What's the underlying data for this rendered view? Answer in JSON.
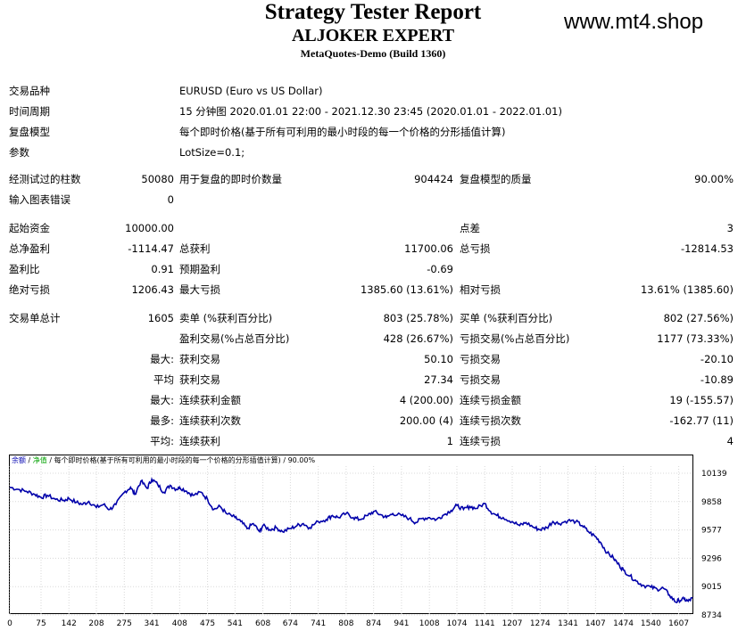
{
  "header": {
    "title": "Strategy Tester Report",
    "subtitle": "ALJOKER EXPERT",
    "build": "MetaQuotes-Demo (Build 1360)",
    "watermark": "www.mt4.shop"
  },
  "info": {
    "symbol_label": "交易品种",
    "symbol_value": "EURUSD (Euro vs US Dollar)",
    "period_label": "时间周期",
    "period_value": "15 分钟图 2020.01.01 22:00 - 2021.12.30 23:45 (2020.01.01 - 2022.01.01)",
    "model_label": "复盘模型",
    "model_value": "每个即时价格(基于所有可利用的最小时段的每一个价格的分形插值计算)",
    "params_label": "参数",
    "params_value": "LotSize=0.1;"
  },
  "test": {
    "bars_label": "经测试过的柱数",
    "bars_value": "50080",
    "ticks_label": "用于复盘的即时价数量",
    "ticks_value": "904424",
    "quality_label": "复盘模型的质量",
    "quality_value": "90.00%",
    "errors_label": "输入图表错误",
    "errors_value": "0"
  },
  "results": {
    "deposit_label": "起始资金",
    "deposit_value": "10000.00",
    "spread_label": "点差",
    "spread_value": "3",
    "net_label": "总净盈利",
    "net_value": "-1114.47",
    "gross_profit_label": "总获利",
    "gross_profit_value": "11700.06",
    "gross_loss_label": "总亏损",
    "gross_loss_value": "-12814.53",
    "pf_label": "盈利比",
    "pf_value": "0.91",
    "expected_label": "预期盈利",
    "expected_value": "-0.69",
    "abs_dd_label": "绝对亏损",
    "abs_dd_value": "1206.43",
    "max_dd_label": "最大亏损",
    "max_dd_value": "1385.60 (13.61%)",
    "rel_dd_label": "相对亏损",
    "rel_dd_value": "13.61% (1385.60)"
  },
  "trades": {
    "total_label": "交易单总计",
    "total_value": "1605",
    "short_label": "卖单 (%获利百分比)",
    "short_value": "803 (25.78%)",
    "long_label": "买单 (%获利百分比)",
    "long_value": "802 (27.56%)",
    "profit_trades_label": "盈利交易(%占总百分比)",
    "profit_trades_value": "428 (26.67%)",
    "loss_trades_label": "亏损交易(%占总百分比)",
    "loss_trades_value": "1177 (73.33%)",
    "max_prefix": "最大:",
    "largest_profit_label": "获利交易",
    "largest_profit_value": "50.10",
    "largest_loss_label": "亏损交易",
    "largest_loss_value": "-20.10",
    "avg_prefix": "平均",
    "avg_profit_label": "获利交易",
    "avg_profit_value": "27.34",
    "avg_loss_label": "亏损交易",
    "avg_loss_value": "-10.89",
    "max2_prefix": "最大:",
    "cons_wins_amount_label": "连续获利金额",
    "cons_wins_amount_value": "4 (200.00)",
    "cons_losses_amount_label": "连续亏损金额",
    "cons_losses_amount_value": "19 (-155.57)",
    "most_prefix": "最多:",
    "cons_profit_count_label": "连续获利次数",
    "cons_profit_count_value": "200.00 (4)",
    "cons_loss_count_label": "连续亏损次数",
    "cons_loss_count_value": "-162.77 (11)",
    "avg2_prefix": "平均:",
    "avg_cons_wins_label": "连续获利",
    "avg_cons_wins_value": "1",
    "avg_cons_losses_label": "连续亏损",
    "avg_cons_losses_value": "4"
  },
  "chart_data": {
    "type": "line",
    "legend_balance": "余额",
    "legend_sep1": " / ",
    "legend_equity": "净值",
    "legend_rest": " / 每个即时价格(基于所有可利用的最小时段的每一个价格的分形插值计算) / 90.00%",
    "balance_color": "#0000b0",
    "equity_color": "#00a000",
    "line_color": "#0000aa",
    "x_ticks": [
      "0",
      "75",
      "142",
      "208",
      "275",
      "341",
      "408",
      "475",
      "541",
      "608",
      "674",
      "741",
      "808",
      "874",
      "941",
      "1008",
      "1074",
      "1141",
      "1207",
      "1274",
      "1341",
      "1407",
      "1474",
      "1540",
      "1607"
    ],
    "y_ticks": [
      "10139",
      "9858",
      "9577",
      "9296",
      "9015",
      "8734"
    ],
    "ylim": [
      8734,
      10139
    ],
    "xlim": [
      0,
      1640
    ],
    "series": [
      {
        "values": [
          [
            0,
            10000
          ],
          [
            20,
            9980
          ],
          [
            40,
            9960
          ],
          [
            60,
            9930
          ],
          [
            75,
            9900
          ],
          [
            90,
            9920
          ],
          [
            110,
            9880
          ],
          [
            130,
            9870
          ],
          [
            142,
            9890
          ],
          [
            160,
            9850
          ],
          [
            175,
            9830
          ],
          [
            190,
            9860
          ],
          [
            208,
            9800
          ],
          [
            225,
            9830
          ],
          [
            240,
            9780
          ],
          [
            255,
            9830
          ],
          [
            275,
            9950
          ],
          [
            290,
            10000
          ],
          [
            300,
            9930
          ],
          [
            315,
            10060
          ],
          [
            330,
            9990
          ],
          [
            341,
            10080
          ],
          [
            355,
            10030
          ],
          [
            370,
            9950
          ],
          [
            385,
            10020
          ],
          [
            400,
            9980
          ],
          [
            408,
            10000
          ],
          [
            425,
            9960
          ],
          [
            440,
            9920
          ],
          [
            460,
            9950
          ],
          [
            475,
            9880
          ],
          [
            490,
            9780
          ],
          [
            505,
            9810
          ],
          [
            520,
            9740
          ],
          [
            541,
            9700
          ],
          [
            555,
            9660
          ],
          [
            570,
            9590
          ],
          [
            585,
            9640
          ],
          [
            600,
            9560
          ],
          [
            608,
            9620
          ],
          [
            625,
            9580
          ],
          [
            640,
            9600
          ],
          [
            655,
            9560
          ],
          [
            674,
            9590
          ],
          [
            690,
            9620
          ],
          [
            705,
            9640
          ],
          [
            720,
            9600
          ],
          [
            741,
            9660
          ],
          [
            760,
            9680
          ],
          [
            775,
            9720
          ],
          [
            790,
            9700
          ],
          [
            808,
            9740
          ],
          [
            825,
            9700
          ],
          [
            840,
            9680
          ],
          [
            860,
            9720
          ],
          [
            874,
            9760
          ],
          [
            890,
            9730
          ],
          [
            905,
            9700
          ],
          [
            920,
            9740
          ],
          [
            941,
            9720
          ],
          [
            960,
            9690
          ],
          [
            975,
            9650
          ],
          [
            990,
            9690
          ],
          [
            1008,
            9700
          ],
          [
            1025,
            9680
          ],
          [
            1040,
            9720
          ],
          [
            1060,
            9770
          ],
          [
            1074,
            9820
          ],
          [
            1090,
            9780
          ],
          [
            1105,
            9810
          ],
          [
            1120,
            9790
          ],
          [
            1141,
            9840
          ],
          [
            1155,
            9760
          ],
          [
            1170,
            9720
          ],
          [
            1185,
            9700
          ],
          [
            1207,
            9660
          ],
          [
            1225,
            9620
          ],
          [
            1240,
            9650
          ],
          [
            1260,
            9600
          ],
          [
            1274,
            9580
          ],
          [
            1290,
            9600
          ],
          [
            1305,
            9660
          ],
          [
            1320,
            9640
          ],
          [
            1341,
            9670
          ],
          [
            1360,
            9660
          ],
          [
            1375,
            9620
          ],
          [
            1390,
            9560
          ],
          [
            1407,
            9510
          ],
          [
            1420,
            9450
          ],
          [
            1435,
            9350
          ],
          [
            1450,
            9300
          ],
          [
            1465,
            9220
          ],
          [
            1474,
            9180
          ],
          [
            1490,
            9120
          ],
          [
            1505,
            9070
          ],
          [
            1520,
            9030
          ],
          [
            1540,
            9010
          ],
          [
            1555,
            8990
          ],
          [
            1570,
            9000
          ],
          [
            1585,
            8930
          ],
          [
            1600,
            8860
          ],
          [
            1607,
            8880
          ],
          [
            1620,
            8890
          ],
          [
            1630,
            8870
          ],
          [
            1640,
            8900
          ]
        ]
      }
    ]
  }
}
